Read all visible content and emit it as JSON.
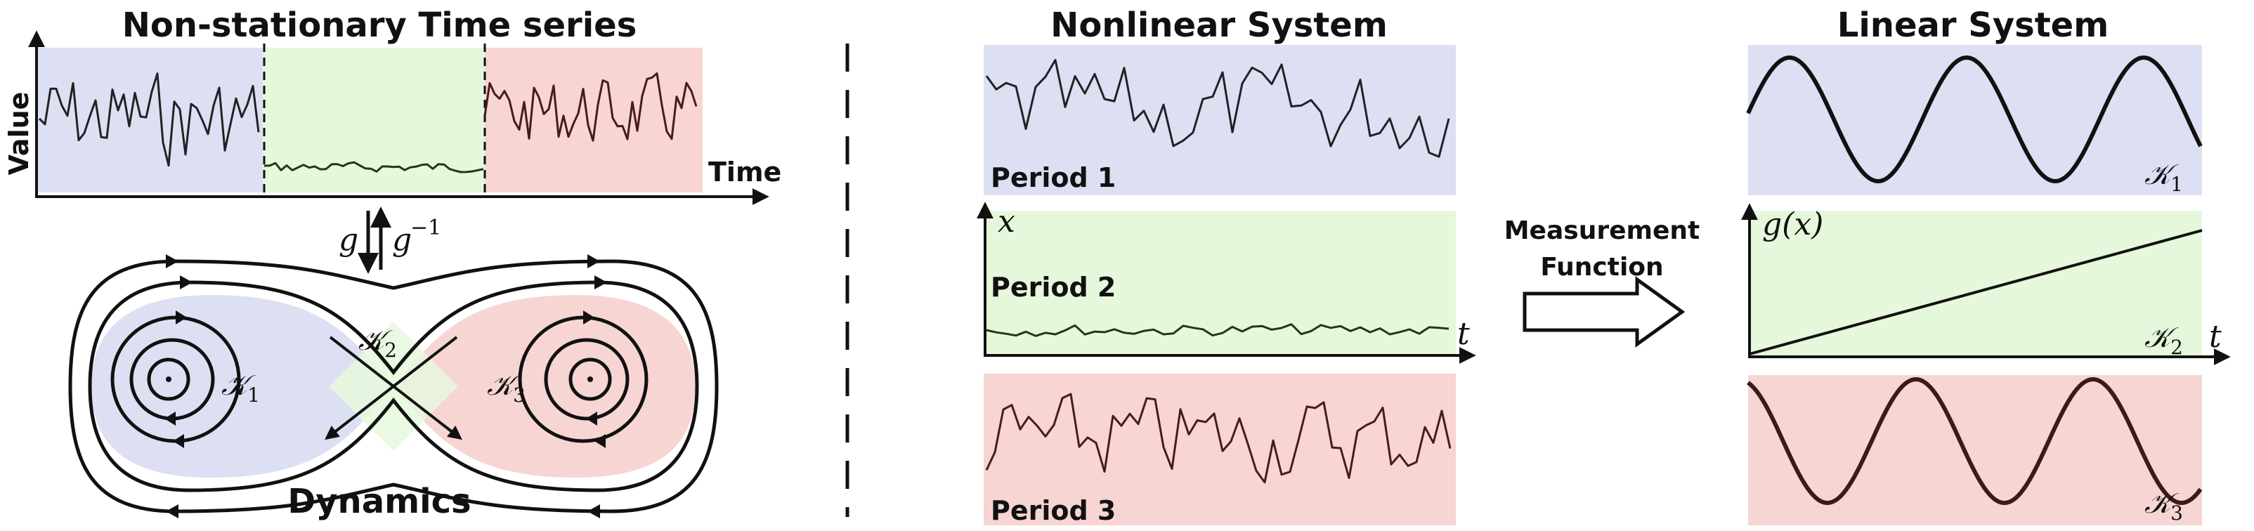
{
  "colors": {
    "blue_region": "#dde0f3",
    "green_region": "#e6f8dc",
    "red_region": "#f6d5d3",
    "green_signal": "#1e3a17",
    "red_signal": "#4a1a1a"
  },
  "left_panel": {
    "title": "Non-stationary Time series",
    "y_axis_label": "Value",
    "x_axis_label": "Time",
    "g_label": "g",
    "ginv_label": "g",
    "ginv_exponent": "−1",
    "dynamics_title": "Dynamics",
    "k1": "𝒦",
    "k1_sub": "1",
    "k2": "𝒦",
    "k2_sub": "2",
    "k3": "𝒦",
    "k3_sub": "3"
  },
  "middle_panel": {
    "title": "Nonlinear System",
    "period1": "Period 1",
    "period2": "Period 2",
    "period3": "Period 3",
    "x_label": "x",
    "t_label": "t"
  },
  "arrow": {
    "line1": "Measurement",
    "line2": "Function"
  },
  "right_panel": {
    "title": "Linear System",
    "gx_label": "g(x)",
    "t_label": "t",
    "k1": "𝒦",
    "k1_sub": "1",
    "k2": "𝒦",
    "k2_sub": "2",
    "k3": "𝒦",
    "k3_sub": "3"
  }
}
